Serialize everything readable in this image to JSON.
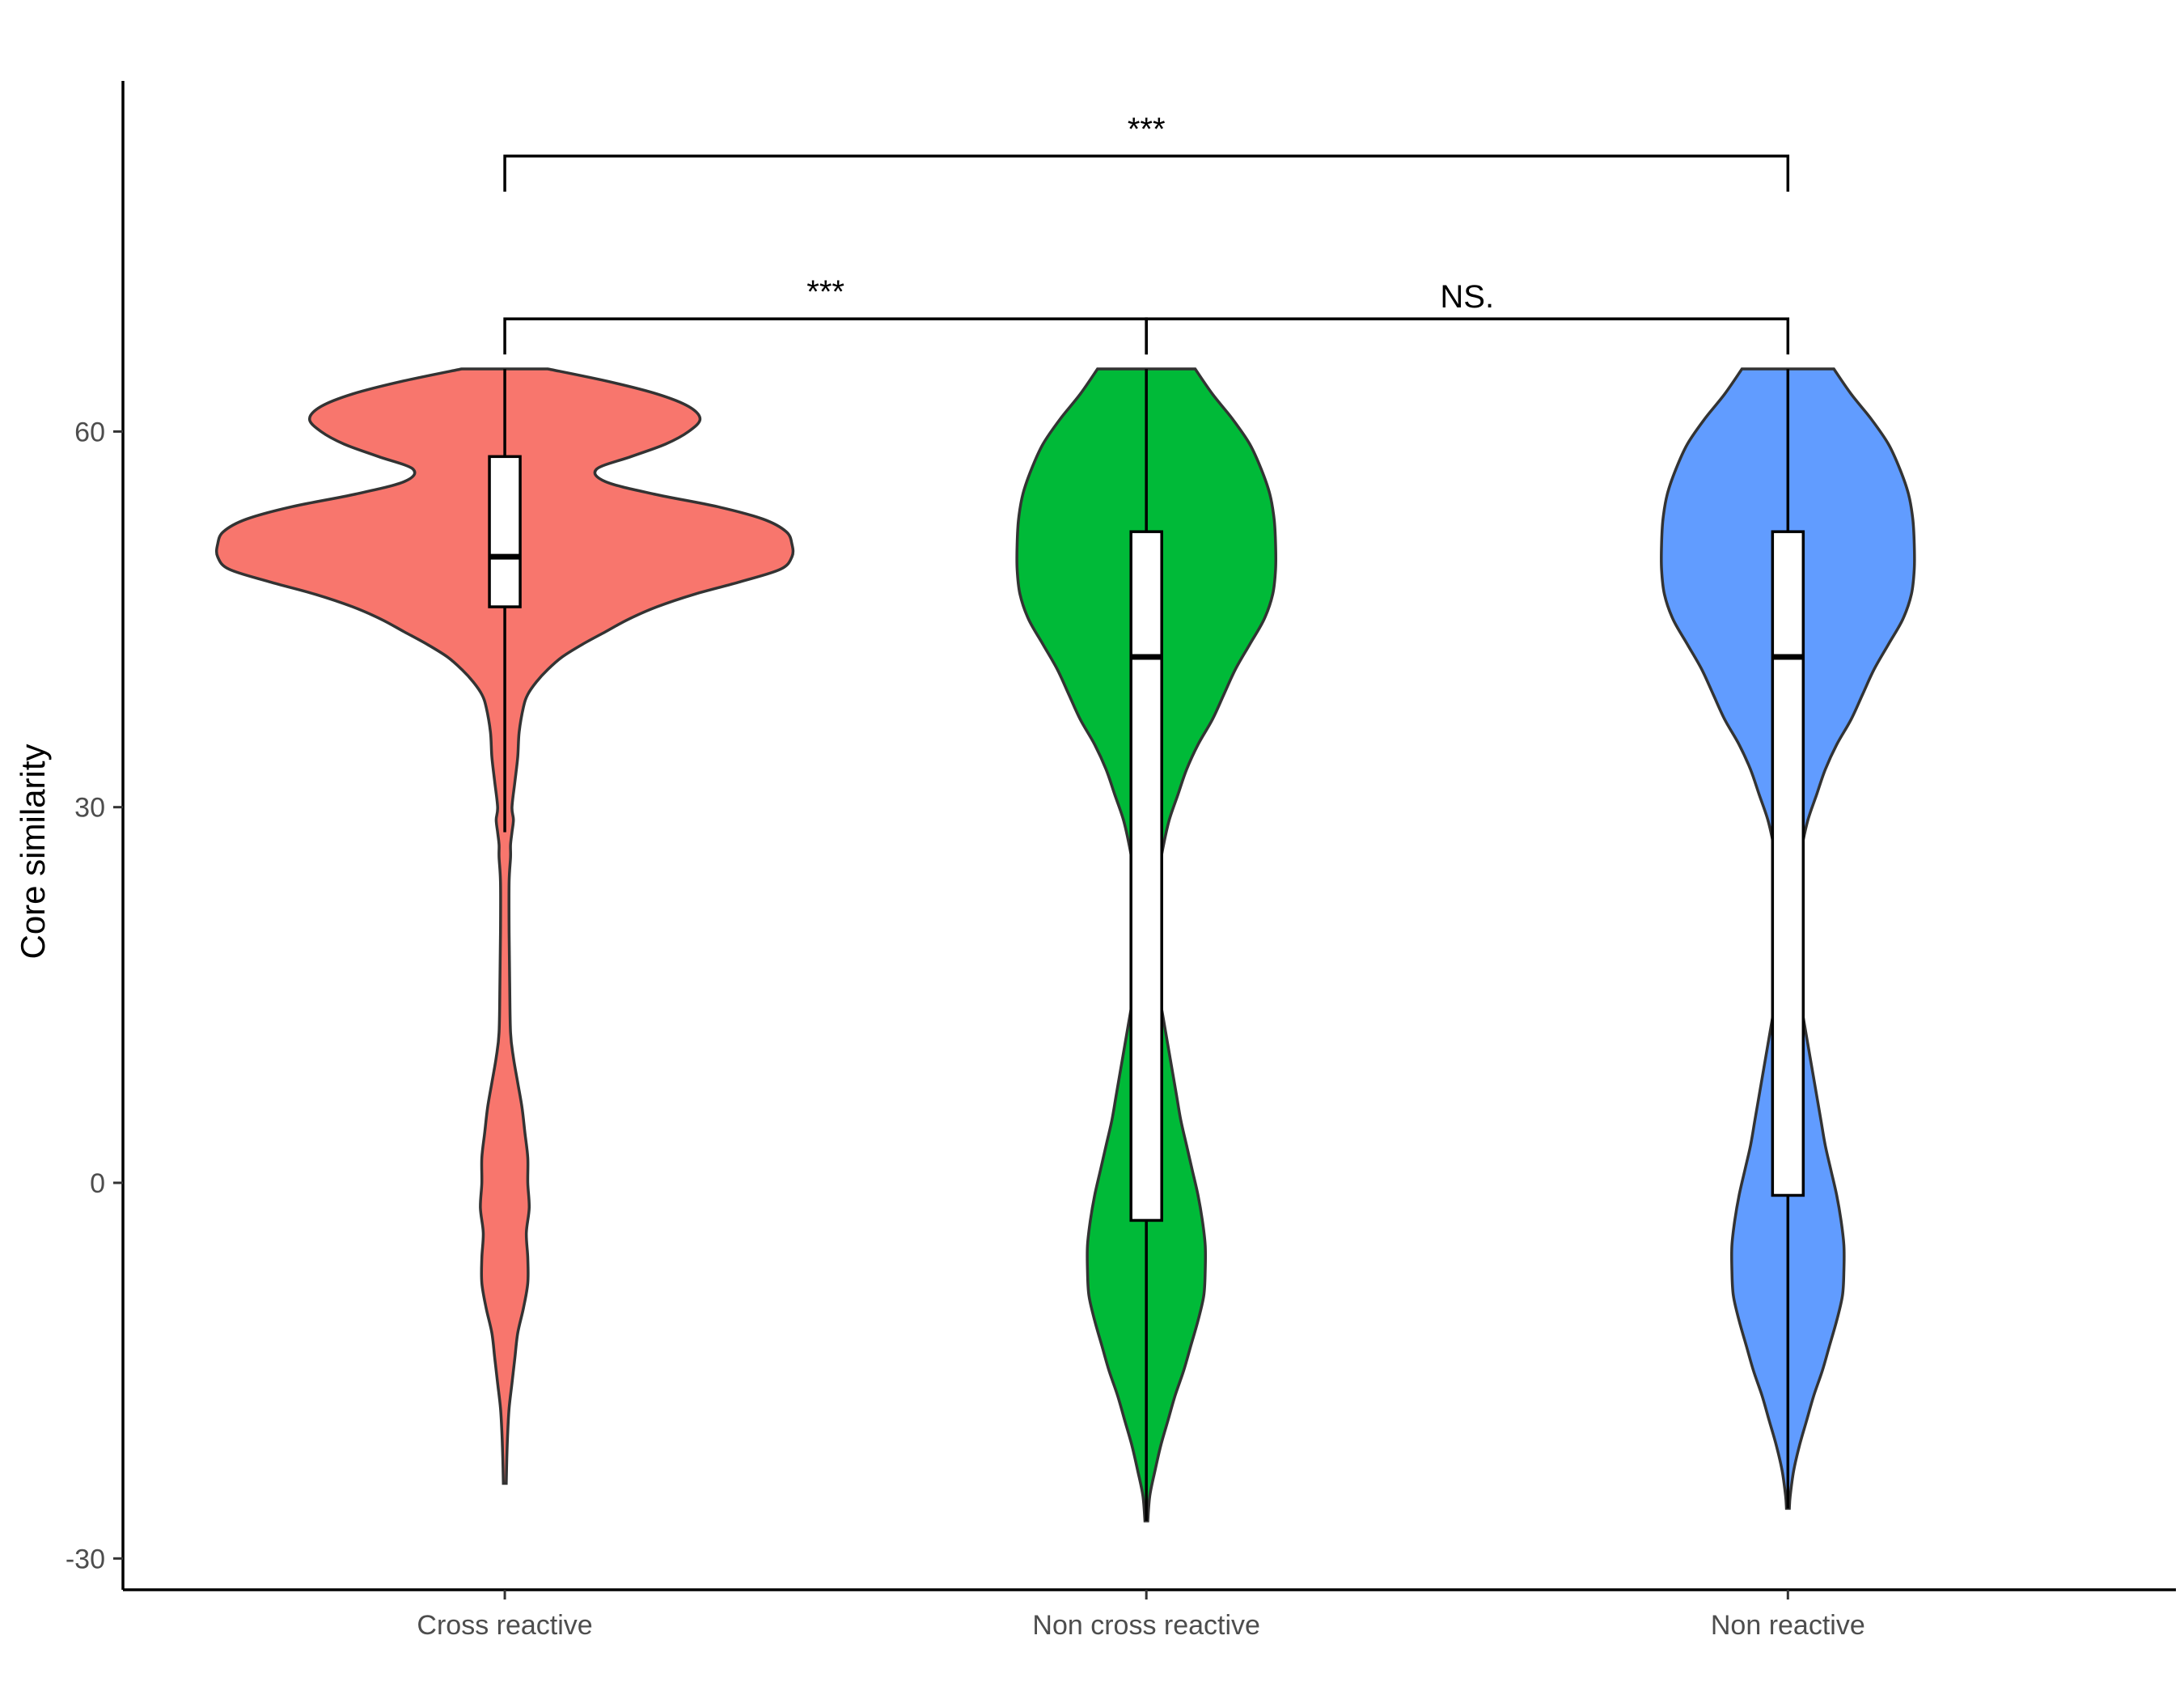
{
  "chart_data": {
    "type": "violin",
    "ylabel": "Core similarity",
    "xlabel": "",
    "ylim": [
      -32.5,
      88
    ],
    "yticks": [
      -30,
      0,
      30,
      60
    ],
    "categories": [
      "Cross reactive",
      "Non cross reactive",
      "Non reactive"
    ],
    "colors": [
      "#F8766D",
      "#00BA38",
      "#619CFF"
    ],
    "grid": false,
    "legend": "none",
    "groups": [
      {
        "name": "Cross reactive",
        "box": {
          "q1": 46,
          "median": 50,
          "q3": 58,
          "whisker_low": 28,
          "whisker_high": 65
        },
        "violin_range": [
          -24,
          65
        ],
        "density_profile": [
          [
            65,
            0.15
          ],
          [
            64,
            0.36
          ],
          [
            63,
            0.53
          ],
          [
            62,
            0.64
          ],
          [
            61,
            0.68
          ],
          [
            60,
            0.64
          ],
          [
            59,
            0.56
          ],
          [
            58,
            0.44
          ],
          [
            57,
            0.32
          ],
          [
            56,
            0.35
          ],
          [
            55,
            0.52
          ],
          [
            54,
            0.74
          ],
          [
            53,
            0.9
          ],
          [
            52,
            0.98
          ],
          [
            51,
            1.0
          ],
          [
            50,
            1.0
          ],
          [
            49,
            0.96
          ],
          [
            48,
            0.82
          ],
          [
            47,
            0.66
          ],
          [
            46,
            0.53
          ],
          [
            45,
            0.43
          ],
          [
            44,
            0.35
          ],
          [
            43,
            0.27
          ],
          [
            42,
            0.2
          ],
          [
            41,
            0.15
          ],
          [
            40,
            0.11
          ],
          [
            39,
            0.08
          ],
          [
            38,
            0.065
          ],
          [
            36,
            0.05
          ],
          [
            34,
            0.045
          ],
          [
            32,
            0.035
          ],
          [
            30,
            0.025
          ],
          [
            29,
            0.03
          ],
          [
            28,
            0.025
          ],
          [
            27,
            0.02
          ],
          [
            26,
            0.02
          ],
          [
            24,
            0.015
          ],
          [
            20,
            0.015
          ],
          [
            16,
            0.017
          ],
          [
            12,
            0.02
          ],
          [
            10,
            0.03
          ],
          [
            8,
            0.045
          ],
          [
            6,
            0.06
          ],
          [
            4,
            0.07
          ],
          [
            2,
            0.08
          ],
          [
            0,
            0.08
          ],
          [
            -2,
            0.085
          ],
          [
            -4,
            0.075
          ],
          [
            -6,
            0.08
          ],
          [
            -8,
            0.08
          ],
          [
            -10,
            0.065
          ],
          [
            -12,
            0.045
          ],
          [
            -14,
            0.035
          ],
          [
            -16,
            0.025
          ],
          [
            -18,
            0.015
          ],
          [
            -20,
            0.01
          ],
          [
            -22,
            0.007
          ],
          [
            -24,
            0.005
          ]
        ]
      },
      {
        "name": "Non cross reactive",
        "box": {
          "q1": -3,
          "median": 42,
          "q3": 52,
          "whisker_low": -27,
          "whisker_high": 65
        },
        "violin_range": [
          -27,
          65
        ],
        "density_profile": [
          [
            65,
            0.17
          ],
          [
            63,
            0.23
          ],
          [
            61,
            0.3
          ],
          [
            59,
            0.36
          ],
          [
            57,
            0.4
          ],
          [
            55,
            0.43
          ],
          [
            53,
            0.445
          ],
          [
            51,
            0.45
          ],
          [
            49,
            0.45
          ],
          [
            47,
            0.44
          ],
          [
            45,
            0.41
          ],
          [
            43,
            0.36
          ],
          [
            41,
            0.31
          ],
          [
            39,
            0.27
          ],
          [
            37,
            0.23
          ],
          [
            35,
            0.18
          ],
          [
            33,
            0.14
          ],
          [
            31,
            0.11
          ],
          [
            29,
            0.08
          ],
          [
            27,
            0.06
          ],
          [
            25,
            0.045
          ],
          [
            23,
            0.04
          ],
          [
            21,
            0.035
          ],
          [
            19,
            0.03
          ],
          [
            17,
            0.035
          ],
          [
            15,
            0.045
          ],
          [
            13,
            0.06
          ],
          [
            11,
            0.075
          ],
          [
            9,
            0.09
          ],
          [
            7,
            0.105
          ],
          [
            5,
            0.12
          ],
          [
            3,
            0.14
          ],
          [
            1,
            0.16
          ],
          [
            -1,
            0.18
          ],
          [
            -3,
            0.195
          ],
          [
            -5,
            0.205
          ],
          [
            -7,
            0.205
          ],
          [
            -9,
            0.2
          ],
          [
            -11,
            0.18
          ],
          [
            -13,
            0.155
          ],
          [
            -15,
            0.13
          ],
          [
            -17,
            0.1
          ],
          [
            -19,
            0.075
          ],
          [
            -21,
            0.05
          ],
          [
            -23,
            0.03
          ],
          [
            -25,
            0.012
          ],
          [
            -27,
            0.005
          ]
        ]
      },
      {
        "name": "Non reactive",
        "box": {
          "q1": -1,
          "median": 42,
          "q3": 52,
          "whisker_low": -26,
          "whisker_high": 65
        },
        "violin_range": [
          -26,
          65
        ],
        "density_profile": [
          [
            65,
            0.16
          ],
          [
            63,
            0.22
          ],
          [
            61,
            0.29
          ],
          [
            59,
            0.35
          ],
          [
            57,
            0.39
          ],
          [
            55,
            0.42
          ],
          [
            53,
            0.435
          ],
          [
            51,
            0.44
          ],
          [
            49,
            0.44
          ],
          [
            47,
            0.43
          ],
          [
            45,
            0.4
          ],
          [
            43,
            0.35
          ],
          [
            41,
            0.3
          ],
          [
            39,
            0.26
          ],
          [
            37,
            0.22
          ],
          [
            35,
            0.17
          ],
          [
            33,
            0.13
          ],
          [
            31,
            0.1
          ],
          [
            29,
            0.07
          ],
          [
            27,
            0.05
          ],
          [
            25,
            0.035
          ],
          [
            23,
            0.03
          ],
          [
            21,
            0.025
          ],
          [
            19,
            0.025
          ],
          [
            17,
            0.03
          ],
          [
            15,
            0.04
          ],
          [
            13,
            0.055
          ],
          [
            11,
            0.07
          ],
          [
            9,
            0.085
          ],
          [
            7,
            0.1
          ],
          [
            5,
            0.115
          ],
          [
            3,
            0.13
          ],
          [
            1,
            0.15
          ],
          [
            -1,
            0.17
          ],
          [
            -3,
            0.185
          ],
          [
            -5,
            0.195
          ],
          [
            -7,
            0.195
          ],
          [
            -9,
            0.19
          ],
          [
            -11,
            0.17
          ],
          [
            -13,
            0.145
          ],
          [
            -15,
            0.12
          ],
          [
            -17,
            0.09
          ],
          [
            -19,
            0.065
          ],
          [
            -21,
            0.04
          ],
          [
            -23,
            0.02
          ],
          [
            -25,
            0.008
          ],
          [
            -26,
            0.005
          ]
        ]
      }
    ],
    "significance": [
      {
        "from": "Cross reactive",
        "to": "Non reactive",
        "y": 82,
        "label": "***"
      },
      {
        "from": "Cross reactive",
        "to": "Non cross reactive",
        "y": 69,
        "label": "***"
      },
      {
        "from": "Non cross reactive",
        "to": "Non reactive",
        "y": 69,
        "label": "NS."
      }
    ]
  }
}
